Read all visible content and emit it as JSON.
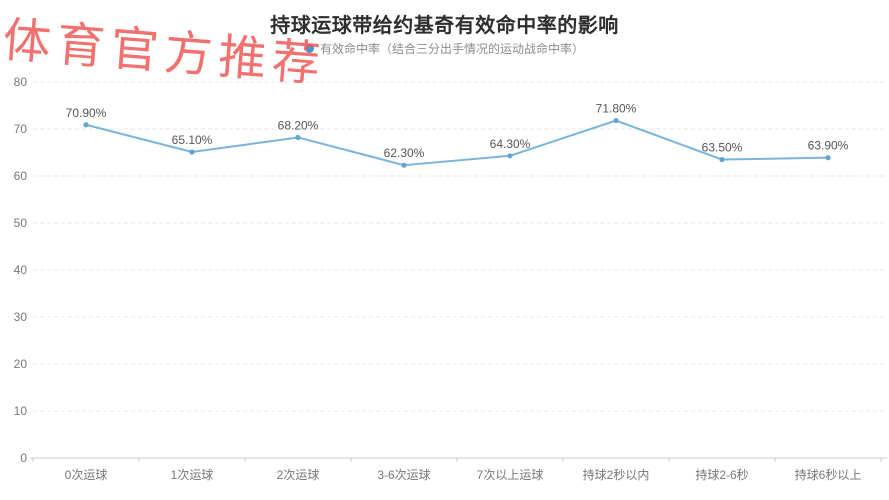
{
  "watermark": {
    "text": "体育官方推荐",
    "color": "rgba(240, 88, 85, 0.85)"
  },
  "header": {
    "title": "持球运球带给约基奇有效命中率的影响"
  },
  "legend": {
    "label": "有效命中率（结合三分出手情况的运动战命中率）",
    "dot_color": "#4796d2"
  },
  "chart_data": {
    "type": "line",
    "title": "持球运球带给约基奇有效命中率的影响",
    "categories": [
      "0次运球",
      "1次运球",
      "2次运球",
      "3-6次运球",
      "7次以上运球",
      "持球2秒以内",
      "持球2-6秒",
      "持球6秒以上"
    ],
    "series": [
      {
        "name": "有效命中率（结合三分出手情况的运动战命中率）",
        "values": [
          70.9,
          65.1,
          68.2,
          62.3,
          64.3,
          71.8,
          63.5,
          63.9
        ]
      }
    ],
    "point_labels": [
      "70.90%",
      "65.10%",
      "68.20%",
      "62.30%",
      "64.30%",
      "71.80%",
      "63.50%",
      "63.90%"
    ],
    "xlabel": "",
    "ylabel": "",
    "ylim": [
      0,
      80
    ],
    "y_ticks": [
      0,
      10,
      20,
      30,
      40,
      50,
      60,
      70,
      80
    ],
    "grid": "horizontal-dashed",
    "legend_position": "top",
    "colors": {
      "line": "#78b4dc",
      "marker": "#63a3d0",
      "grid_line": "#e4e4e4",
      "axis_line": "#c8c8c8",
      "axis_label": "#777777",
      "point_label": "#555555"
    }
  }
}
